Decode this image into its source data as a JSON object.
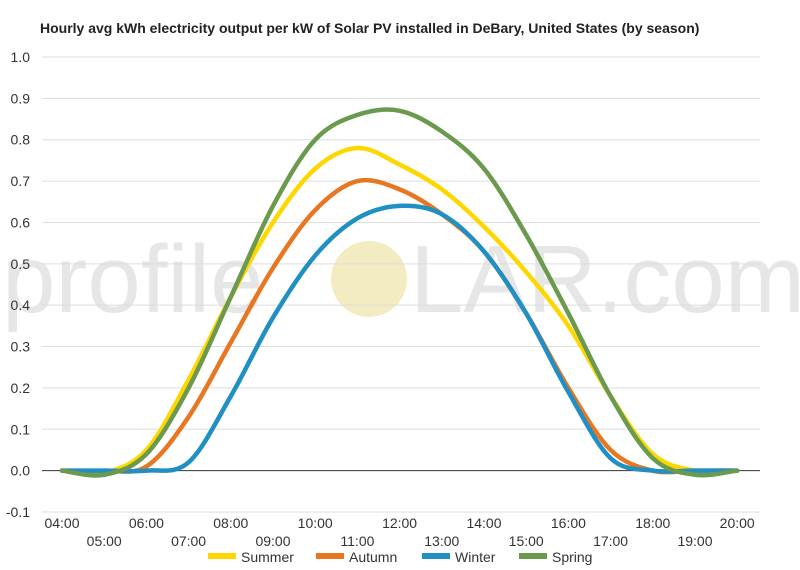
{
  "chart_data": {
    "type": "line",
    "title": "Hourly avg kWh electricity output per kW of Solar PV installed in DeBary, United States (by season)",
    "watermark": {
      "left": "profile",
      "right": "LAR.com"
    },
    "xlabel": "",
    "ylabel": "",
    "x": [
      "04:00",
      "05:00",
      "06:00",
      "07:00",
      "08:00",
      "09:00",
      "10:00",
      "11:00",
      "12:00",
      "13:00",
      "14:00",
      "15:00",
      "16:00",
      "17:00",
      "18:00",
      "19:00",
      "20:00"
    ],
    "ylim": [
      -0.1,
      1.0
    ],
    "yticks": [
      "-0.1",
      "0.0",
      "0.1",
      "0.2",
      "0.3",
      "0.4",
      "0.5",
      "0.6",
      "0.7",
      "0.8",
      "0.9",
      "1.0"
    ],
    "grid": true,
    "legend_position": "bottom",
    "series": [
      {
        "name": "Summer",
        "color": "#FFD700",
        "values": [
          0.0,
          -0.005,
          0.05,
          0.22,
          0.42,
          0.6,
          0.73,
          0.78,
          0.74,
          0.68,
          0.59,
          0.48,
          0.35,
          0.18,
          0.04,
          0.0,
          0.0
        ]
      },
      {
        "name": "Autumn",
        "color": "#E87722",
        "values": [
          0.0,
          0.0,
          0.01,
          0.13,
          0.31,
          0.49,
          0.63,
          0.7,
          0.68,
          0.62,
          0.53,
          0.38,
          0.2,
          0.05,
          0.0,
          0.0,
          0.0
        ]
      },
      {
        "name": "Winter",
        "color": "#1F8FC4",
        "values": [
          0.0,
          0.0,
          0.0,
          0.02,
          0.18,
          0.37,
          0.52,
          0.61,
          0.64,
          0.62,
          0.53,
          0.38,
          0.19,
          0.03,
          0.0,
          0.0,
          0.0
        ]
      },
      {
        "name": "Spring",
        "color": "#6B9A4F",
        "values": [
          0.0,
          -0.01,
          0.04,
          0.2,
          0.42,
          0.64,
          0.8,
          0.86,
          0.87,
          0.82,
          0.73,
          0.57,
          0.38,
          0.18,
          0.03,
          -0.01,
          0.0
        ]
      }
    ]
  }
}
